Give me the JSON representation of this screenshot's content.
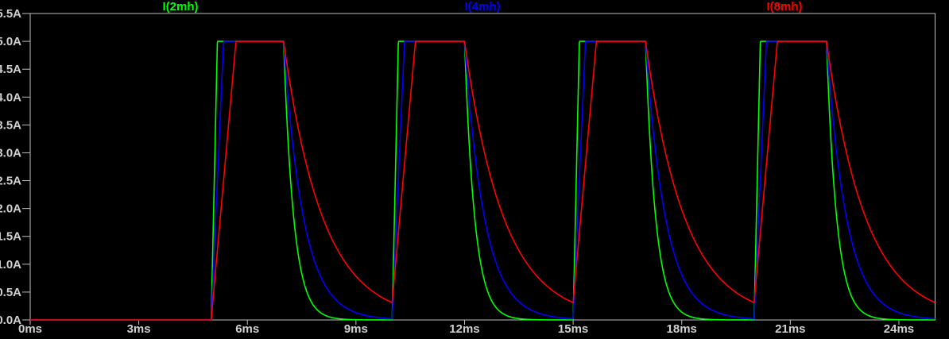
{
  "legend": {
    "items": [
      {
        "label": "I(2mh)",
        "color": "#00ff00"
      },
      {
        "label": "I(4mh)",
        "color": "#0000ff"
      },
      {
        "label": "I(8mh)",
        "color": "#ff0000"
      }
    ]
  },
  "axes": {
    "y": {
      "unit": "A",
      "tick_labels": [
        "5.5A",
        "5.0A",
        "4.5A",
        "4.0A",
        "3.5A",
        "3.0A",
        "2.5A",
        "2.0A",
        "1.5A",
        "1.0A",
        "0.5A",
        "0.0A"
      ]
    },
    "x": {
      "unit": "ms",
      "tick_labels": [
        "0ms",
        "3ms",
        "6ms",
        "9ms",
        "12ms",
        "15ms",
        "18ms",
        "21ms",
        "24ms"
      ]
    }
  },
  "colors": {
    "background": "#000000",
    "plot_border": "#bebebe",
    "tick_text": "#d0d0d0"
  },
  "chart_data": {
    "type": "line",
    "title": "",
    "x_unit": "ms",
    "y_unit": "A",
    "x_range": [
      0,
      25
    ],
    "y_range": [
      0,
      5.5
    ],
    "x_tick_values": [
      0,
      3,
      6,
      9,
      12,
      15,
      18,
      21,
      24
    ],
    "y_tick_values": [
      5.5,
      5.0,
      4.5,
      4.0,
      3.5,
      3.0,
      2.5,
      2.0,
      1.5,
      1.0,
      0.5,
      0.0
    ],
    "grid": false,
    "legend_position": "top",
    "pulse_drive": {
      "on_times_ms": [
        5,
        10,
        15,
        20
      ],
      "off_times_ms": [
        7,
        12,
        17,
        22
      ],
      "period_ms": 5,
      "on_duration_ms": 2,
      "plateau_A": 5.0
    },
    "series": [
      {
        "name": "I(2mh)",
        "color": "#00ff00",
        "ramp_rate_A_per_ms": 29.2,
        "rise_time_to_5A_ms": 0.17,
        "decay_tau_ms": 0.28,
        "peak_A": 5.0,
        "value_at_cycle_end_A": 0.0
      },
      {
        "name": "I(4mh)",
        "color": "#0000ff",
        "ramp_rate_A_per_ms": 14.6,
        "rise_time_to_5A_ms": 0.34,
        "decay_tau_ms": 0.55,
        "peak_A": 5.0,
        "value_at_cycle_end_A": 0.02
      },
      {
        "name": "I(8mh)",
        "color": "#ff0000",
        "ramp_rate_A_per_ms": 7.3,
        "rise_time_to_5A_ms": 0.68,
        "decay_tau_ms": 1.08,
        "peak_A": 5.0,
        "value_at_cycle_end_A": 0.31
      }
    ],
    "waveform_model": "i=0 until first on-time; while pulse on, i rises linearly at ramp_rate_A_per_ms clamped at plateau_A; while pulse off, i decays as plateau_A*exp(-t/decay_tau_ms) from the off-time"
  }
}
